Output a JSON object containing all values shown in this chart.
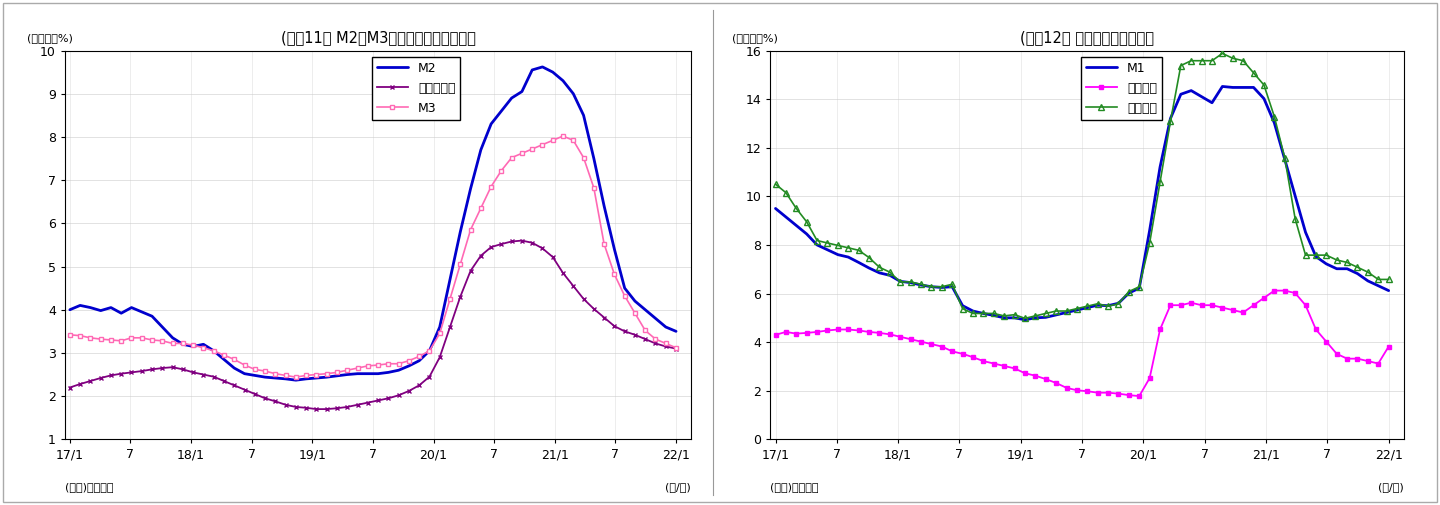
{
  "chart1": {
    "title": "(図表11） M2、M3、広義流動性の伸び率",
    "ylabel_note": "(前年比、%)",
    "source": "(資料)日本銀行",
    "xlabel": "(年/月)",
    "ylim": [
      1,
      10
    ],
    "yticks": [
      1,
      2,
      3,
      4,
      5,
      6,
      7,
      8,
      9,
      10
    ],
    "xtick_labels": [
      "17/1",
      "7",
      "18/1",
      "7",
      "19/1",
      "7",
      "20/1",
      "7",
      "21/1",
      "7",
      "22/1"
    ],
    "M2": [
      4.0,
      4.1,
      4.05,
      3.98,
      4.05,
      3.92,
      4.05,
      3.95,
      3.85,
      3.6,
      3.35,
      3.2,
      3.15,
      3.2,
      3.05,
      2.85,
      2.65,
      2.52,
      2.48,
      2.44,
      2.42,
      2.4,
      2.37,
      2.4,
      2.42,
      2.44,
      2.47,
      2.5,
      2.52,
      2.52,
      2.52,
      2.55,
      2.6,
      2.7,
      2.82,
      3.05,
      3.6,
      4.7,
      5.8,
      6.8,
      7.7,
      8.3,
      8.6,
      8.9,
      9.05,
      9.55,
      9.62,
      9.5,
      9.3,
      9.0,
      8.5,
      7.5,
      6.4,
      5.4,
      4.5,
      4.2,
      4.0,
      3.8,
      3.6,
      3.5
    ],
    "kougi": [
      2.2,
      2.28,
      2.35,
      2.42,
      2.48,
      2.52,
      2.55,
      2.58,
      2.62,
      2.65,
      2.67,
      2.62,
      2.55,
      2.5,
      2.45,
      2.35,
      2.25,
      2.15,
      2.05,
      1.95,
      1.88,
      1.8,
      1.75,
      1.73,
      1.7,
      1.7,
      1.72,
      1.75,
      1.8,
      1.85,
      1.9,
      1.95,
      2.02,
      2.12,
      2.25,
      2.45,
      2.9,
      3.6,
      4.3,
      4.9,
      5.25,
      5.45,
      5.52,
      5.58,
      5.6,
      5.55,
      5.42,
      5.22,
      4.85,
      4.55,
      4.25,
      4.02,
      3.82,
      3.62,
      3.5,
      3.42,
      3.32,
      3.22,
      3.15,
      3.1
    ],
    "M3": [
      3.42,
      3.4,
      3.35,
      3.32,
      3.3,
      3.28,
      3.35,
      3.35,
      3.3,
      3.28,
      3.22,
      3.22,
      3.18,
      3.12,
      3.05,
      2.95,
      2.85,
      2.72,
      2.62,
      2.58,
      2.52,
      2.48,
      2.44,
      2.48,
      2.5,
      2.52,
      2.55,
      2.6,
      2.65,
      2.7,
      2.72,
      2.75,
      2.75,
      2.82,
      2.92,
      3.05,
      3.45,
      4.25,
      5.05,
      5.85,
      6.35,
      6.85,
      7.22,
      7.52,
      7.62,
      7.72,
      7.82,
      7.92,
      8.02,
      7.92,
      7.52,
      6.82,
      5.52,
      4.82,
      4.32,
      3.92,
      3.52,
      3.32,
      3.22,
      3.12
    ],
    "colors": {
      "M2": "#0000CD",
      "kougi": "#800080",
      "M3": "#FF69B4"
    },
    "legend_labels": [
      "M2",
      "広義流動性",
      "M3"
    ]
  },
  "chart2": {
    "title": "(図表12） 現金・預金の伸び率",
    "ylabel_note": "(前年比、%)",
    "source": "(資料)日本銀行",
    "xlabel": "(年/月)",
    "ylim": [
      0,
      16
    ],
    "yticks": [
      0,
      2,
      4,
      6,
      8,
      10,
      12,
      14,
      16
    ],
    "xtick_labels": [
      "17/1",
      "7",
      "18/1",
      "7",
      "19/1",
      "7",
      "20/1",
      "7",
      "21/1",
      "7",
      "22/1"
    ],
    "M1": [
      9.5,
      9.15,
      8.8,
      8.45,
      8.0,
      7.8,
      7.6,
      7.5,
      7.28,
      7.05,
      6.85,
      6.75,
      6.5,
      6.45,
      6.35,
      6.28,
      6.25,
      6.28,
      5.5,
      5.28,
      5.18,
      5.1,
      5.0,
      5.0,
      4.92,
      5.0,
      5.02,
      5.12,
      5.22,
      5.32,
      5.42,
      5.52,
      5.5,
      5.6,
      6.02,
      6.22,
      8.6,
      11.2,
      13.2,
      14.2,
      14.35,
      14.1,
      13.85,
      14.52,
      14.48,
      14.48,
      14.48,
      14.02,
      13.02,
      11.52,
      10.02,
      8.52,
      7.52,
      7.22,
      7.02,
      7.02,
      6.82,
      6.52,
      6.32,
      6.12
    ],
    "genkin": [
      4.3,
      4.42,
      4.35,
      4.38,
      4.42,
      4.48,
      4.52,
      4.52,
      4.48,
      4.42,
      4.38,
      4.32,
      4.22,
      4.12,
      4.02,
      3.92,
      3.82,
      3.62,
      3.52,
      3.38,
      3.22,
      3.12,
      3.02,
      2.92,
      2.72,
      2.62,
      2.48,
      2.32,
      2.12,
      2.02,
      1.98,
      1.92,
      1.92,
      1.88,
      1.82,
      1.78,
      2.52,
      4.52,
      5.52,
      5.52,
      5.62,
      5.52,
      5.52,
      5.42,
      5.32,
      5.22,
      5.52,
      5.82,
      6.12,
      6.12,
      6.02,
      5.52,
      4.52,
      4.02,
      3.52,
      3.32,
      3.32,
      3.22,
      3.12,
      3.82
    ],
    "yokin": [
      10.5,
      10.15,
      9.5,
      8.95,
      8.18,
      8.08,
      7.98,
      7.88,
      7.78,
      7.48,
      7.08,
      6.88,
      6.48,
      6.48,
      6.38,
      6.28,
      6.28,
      6.38,
      5.38,
      5.18,
      5.18,
      5.18,
      5.08,
      5.13,
      4.98,
      5.08,
      5.18,
      5.28,
      5.28,
      5.38,
      5.48,
      5.58,
      5.48,
      5.58,
      6.08,
      6.28,
      8.08,
      10.58,
      13.08,
      15.38,
      15.58,
      15.58,
      15.58,
      15.88,
      15.68,
      15.58,
      15.08,
      14.58,
      13.28,
      11.58,
      9.08,
      7.58,
      7.58,
      7.58,
      7.38,
      7.28,
      7.08,
      6.88,
      6.58,
      6.58
    ],
    "colors": {
      "M1": "#0000CD",
      "genkin": "#FF00FF",
      "yokin": "#228B22"
    },
    "legend_labels": [
      "M1",
      "現金通貨",
      "預金通貨"
    ]
  },
  "fig_bg": "#ffffff",
  "panel_bg": "#ffffff",
  "border_color": "#cccccc"
}
